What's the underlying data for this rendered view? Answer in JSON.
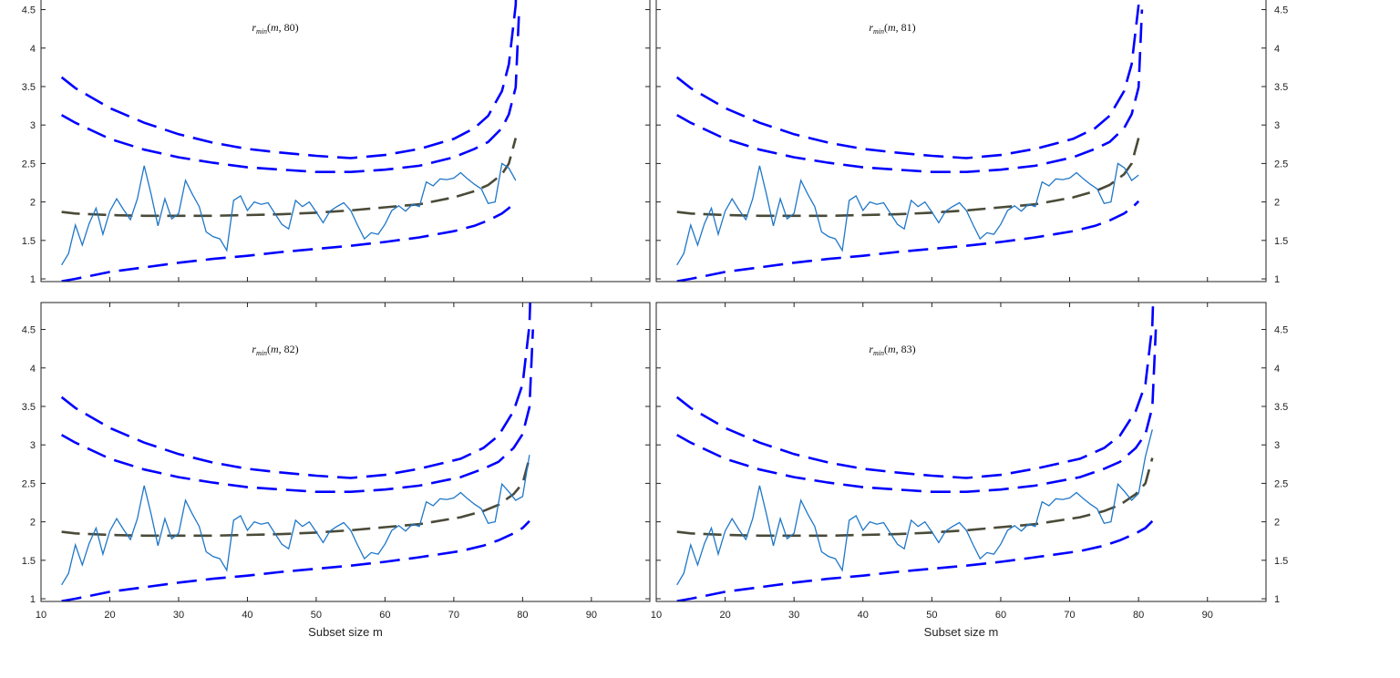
{
  "colors": {
    "observed": "#1f77c8",
    "band": "#0000ff",
    "median": "#4a4a38",
    "axis": "#222222"
  },
  "chart_data": [
    {
      "type": "line",
      "title": {
        "symbol": "r",
        "subscript": "min",
        "args_open": "(",
        "arg_var": "m",
        "args_rest": ", 80)"
      },
      "xlabel": "",
      "xlim": [
        10,
        98.5
      ],
      "ylim": [
        0.965,
        4.85
      ],
      "xticks": [
        10,
        20,
        30,
        40,
        50,
        60,
        70,
        80,
        90
      ],
      "xtick_labels_shown": false,
      "yticks": [
        1,
        1.5,
        2,
        2.5,
        3,
        3.5,
        4,
        4.5
      ],
      "ytick_labels": [
        "1",
        "1.5",
        "2",
        "2.5",
        "3",
        "3.5",
        "4",
        "4.5"
      ],
      "ytick_side": "left",
      "observed": {
        "x_start": 13,
        "y": [
          1.18,
          1.33,
          1.7,
          1.44,
          1.72,
          1.92,
          1.58,
          1.88,
          2.04,
          1.9,
          1.77,
          2.04,
          2.47,
          2.1,
          1.69,
          2.04,
          1.78,
          1.85,
          2.28,
          2.1,
          1.94,
          1.61,
          1.55,
          1.52,
          1.37,
          2.02,
          2.08,
          1.89,
          2.0,
          1.97,
          1.99,
          1.85,
          1.71,
          1.65,
          2.02,
          1.94,
          2.0,
          1.87,
          1.73,
          1.88,
          1.94,
          1.99,
          1.89,
          1.7,
          1.52,
          1.6,
          1.58,
          1.71,
          1.89,
          1.95,
          1.88,
          1.97,
          1.94,
          2.26,
          2.21,
          2.3,
          2.29,
          2.31,
          2.38,
          2.3,
          2.23,
          2.17,
          1.98,
          2.0,
          2.5,
          2.44,
          2.28
        ]
      },
      "bands_x": [
        13,
        15,
        20,
        25,
        30,
        35,
        40,
        45,
        50,
        55,
        60,
        65,
        70,
        73,
        75,
        77,
        78,
        79,
        79.5
      ]
    },
    {
      "type": "line",
      "title": {
        "symbol": "r",
        "subscript": "min",
        "args_open": "(",
        "arg_var": "m",
        "args_rest": ", 81)"
      },
      "xlabel": "",
      "xlim": [
        10,
        98.5
      ],
      "ylim": [
        0.965,
        4.85
      ],
      "xticks": [
        10,
        20,
        30,
        40,
        50,
        60,
        70,
        80,
        90
      ],
      "xtick_labels_shown": false,
      "yticks": [
        1,
        1.5,
        2,
        2.5,
        3,
        3.5,
        4,
        4.5
      ],
      "ytick_labels": [
        "1",
        "1.5",
        "2",
        "2.5",
        "3",
        "3.5",
        "4",
        "4.5"
      ],
      "ytick_side": "right",
      "observed": {
        "x_start": 13,
        "y": [
          1.18,
          1.33,
          1.7,
          1.44,
          1.72,
          1.92,
          1.58,
          1.88,
          2.04,
          1.9,
          1.77,
          2.04,
          2.47,
          2.1,
          1.69,
          2.04,
          1.78,
          1.85,
          2.28,
          2.1,
          1.94,
          1.61,
          1.55,
          1.52,
          1.37,
          2.02,
          2.08,
          1.89,
          2.0,
          1.97,
          1.99,
          1.85,
          1.71,
          1.65,
          2.02,
          1.94,
          2.0,
          1.87,
          1.73,
          1.88,
          1.94,
          1.99,
          1.89,
          1.7,
          1.52,
          1.6,
          1.58,
          1.71,
          1.89,
          1.95,
          1.88,
          1.97,
          1.94,
          2.26,
          2.21,
          2.3,
          2.29,
          2.31,
          2.38,
          2.3,
          2.23,
          2.17,
          1.98,
          2.0,
          2.5,
          2.44,
          2.28,
          2.35
        ]
      },
      "bands_x": [
        13,
        15,
        20,
        25,
        30,
        35,
        40,
        45,
        50,
        55,
        60,
        65,
        70.5,
        73.7,
        75.8,
        77.9,
        79,
        80,
        80.5
      ]
    },
    {
      "type": "line",
      "title": {
        "symbol": "r",
        "subscript": "min",
        "args_open": "(",
        "arg_var": "m",
        "args_rest": ", 82)"
      },
      "xlabel": "Subset size m",
      "xlim": [
        10,
        98.5
      ],
      "ylim": [
        0.965,
        4.85
      ],
      "xticks": [
        10,
        20,
        30,
        40,
        50,
        60,
        70,
        80,
        90
      ],
      "xtick_labels_shown": true,
      "xtick_labels": [
        "10",
        "20",
        "30",
        "40",
        "50",
        "60",
        "70",
        "80",
        "90"
      ],
      "yticks": [
        1,
        1.5,
        2,
        2.5,
        3,
        3.5,
        4,
        4.5
      ],
      "ytick_labels": [
        "1",
        "1.5",
        "2",
        "2.5",
        "3",
        "3.5",
        "4",
        "4.5"
      ],
      "ytick_side": "left",
      "observed": {
        "x_start": 13,
        "y": [
          1.18,
          1.33,
          1.7,
          1.44,
          1.72,
          1.92,
          1.58,
          1.88,
          2.04,
          1.9,
          1.77,
          2.04,
          2.47,
          2.1,
          1.69,
          2.04,
          1.78,
          1.85,
          2.28,
          2.1,
          1.94,
          1.61,
          1.55,
          1.52,
          1.37,
          2.02,
          2.08,
          1.89,
          2.0,
          1.97,
          1.99,
          1.85,
          1.71,
          1.65,
          2.02,
          1.94,
          2.0,
          1.87,
          1.73,
          1.88,
          1.94,
          1.99,
          1.89,
          1.7,
          1.52,
          1.6,
          1.58,
          1.71,
          1.89,
          1.95,
          1.88,
          1.97,
          1.94,
          2.26,
          2.21,
          2.3,
          2.29,
          2.31,
          2.38,
          2.3,
          2.23,
          2.17,
          1.98,
          2.0,
          2.49,
          2.39,
          2.28,
          2.33,
          2.87
        ]
      },
      "bands_x": [
        13,
        15,
        20,
        25,
        30,
        35,
        40,
        45,
        50,
        55,
        60,
        65,
        71,
        74.3,
        76.5,
        78.7,
        80,
        81,
        81.5
      ]
    },
    {
      "type": "line",
      "title": {
        "symbol": "r",
        "subscript": "min",
        "args_open": "(",
        "arg_var": "m",
        "args_rest": ", 83)"
      },
      "xlabel": "Subset size m",
      "xlim": [
        10,
        98.5
      ],
      "ylim": [
        0.965,
        4.85
      ],
      "xticks": [
        10,
        20,
        30,
        40,
        50,
        60,
        70,
        80,
        90
      ],
      "xtick_labels_shown": true,
      "xtick_labels": [
        "10",
        "20",
        "30",
        "40",
        "50",
        "60",
        "70",
        "80",
        "90"
      ],
      "yticks": [
        1,
        1.5,
        2,
        2.5,
        3,
        3.5,
        4,
        4.5
      ],
      "ytick_labels": [
        "1",
        "1.5",
        "2",
        "2.5",
        "3",
        "3.5",
        "4",
        "4.5"
      ],
      "ytick_side": "right",
      "observed": {
        "x_start": 13,
        "y": [
          1.18,
          1.33,
          1.7,
          1.44,
          1.72,
          1.92,
          1.58,
          1.88,
          2.04,
          1.9,
          1.77,
          2.04,
          2.47,
          2.1,
          1.69,
          2.04,
          1.78,
          1.85,
          2.28,
          2.1,
          1.94,
          1.61,
          1.55,
          1.52,
          1.37,
          2.02,
          2.08,
          1.89,
          2.0,
          1.97,
          1.99,
          1.85,
          1.71,
          1.65,
          2.02,
          1.94,
          2.0,
          1.87,
          1.73,
          1.88,
          1.94,
          1.99,
          1.89,
          1.7,
          1.52,
          1.6,
          1.58,
          1.71,
          1.89,
          1.95,
          1.88,
          1.97,
          1.94,
          2.26,
          2.21,
          2.3,
          2.29,
          2.31,
          2.38,
          2.3,
          2.23,
          2.17,
          1.98,
          2.0,
          2.49,
          2.39,
          2.28,
          2.37,
          2.85,
          3.2
        ]
      },
      "bands_x": [
        13,
        15,
        20,
        25,
        30,
        35,
        40,
        45,
        50,
        55,
        60,
        65,
        71.5,
        75,
        77.3,
        79.6,
        81,
        82,
        82.5
      ]
    }
  ],
  "bands": {
    "upper_outer": [
      3.62,
      3.48,
      3.22,
      3.03,
      2.88,
      2.77,
      2.69,
      2.64,
      2.6,
      2.57,
      2.61,
      2.69,
      2.82,
      2.96,
      3.12,
      3.44,
      3.79,
      4.56,
      6.0
    ],
    "upper_inner": [
      3.13,
      3.03,
      2.82,
      2.68,
      2.58,
      2.51,
      2.45,
      2.42,
      2.39,
      2.39,
      2.42,
      2.47,
      2.58,
      2.69,
      2.78,
      2.96,
      3.14,
      3.49,
      4.5
    ],
    "median": [
      1.87,
      1.85,
      1.83,
      1.82,
      1.82,
      1.82,
      1.83,
      1.84,
      1.86,
      1.89,
      1.93,
      1.97,
      2.06,
      2.14,
      2.22,
      2.36,
      2.5,
      2.83
    ],
    "lower": [
      0.97,
      1.0,
      1.09,
      1.15,
      1.21,
      1.26,
      1.3,
      1.35,
      1.39,
      1.43,
      1.48,
      1.54,
      1.62,
      1.69,
      1.76,
      1.85,
      1.92,
      2.01
    ]
  }
}
